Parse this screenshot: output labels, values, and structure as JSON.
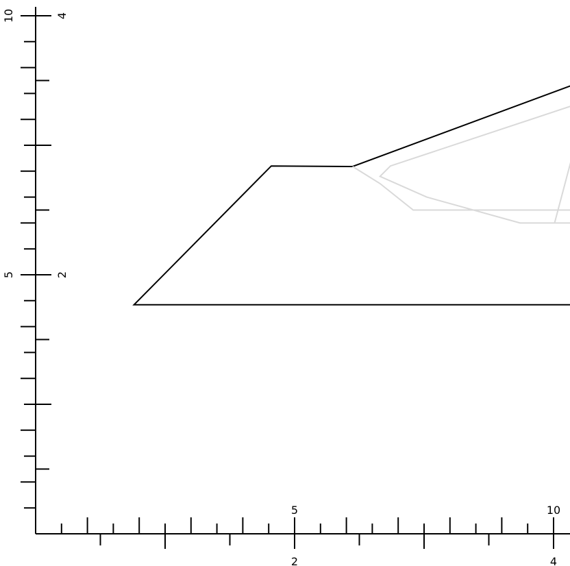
{
  "chart_data": {
    "type": "line",
    "title": "",
    "xlabel": "",
    "ylabel": "",
    "grid": false,
    "legend": "none",
    "axes": {
      "x_primary": {
        "range": [
          0,
          10
        ],
        "labeled_ticks": [
          5,
          10
        ],
        "minor_step": 0.5
      },
      "x_secondary": {
        "range": [
          0,
          4
        ],
        "labeled_ticks": [
          2,
          4
        ],
        "major_step": 0.5
      },
      "y_primary": {
        "range": [
          0,
          10
        ],
        "labeled_ticks": [
          5,
          10
        ],
        "minor_step": 0.5
      },
      "y_secondary": {
        "range": [
          0,
          4
        ],
        "labeled_ticks": [
          2,
          4
        ],
        "major_step": 0.5
      }
    },
    "series": [
      {
        "color": "#000000",
        "points": [
          [
            10.47,
            8.7
          ],
          [
            6.12,
            7.09
          ],
          [
            4.55,
            7.1
          ],
          [
            1.9,
            4.42
          ],
          [
            10.47,
            4.42
          ]
        ]
      },
      {
        "color": "#d9d9d9",
        "points": [
          [
            6.12,
            7.09
          ],
          [
            6.65,
            6.76
          ],
          [
            7.29,
            6.25
          ],
          [
            10.47,
            6.25
          ]
        ]
      },
      {
        "color": "#d9d9d9",
        "points": [
          [
            10.47,
            8.3
          ],
          [
            6.85,
            7.1
          ],
          [
            6.65,
            6.9
          ],
          [
            7.55,
            6.5
          ],
          [
            9.35,
            6.0
          ],
          [
            10.47,
            6.0
          ]
        ]
      },
      {
        "color": "#d9d9d9",
        "points": [
          [
            10.47,
            7.7
          ],
          [
            10.02,
            6.0
          ]
        ]
      },
      {
        "color": "#d9d9d9",
        "points": [
          [
            10.47,
            6.7
          ],
          [
            10.38,
            6.55
          ]
        ]
      }
    ]
  }
}
